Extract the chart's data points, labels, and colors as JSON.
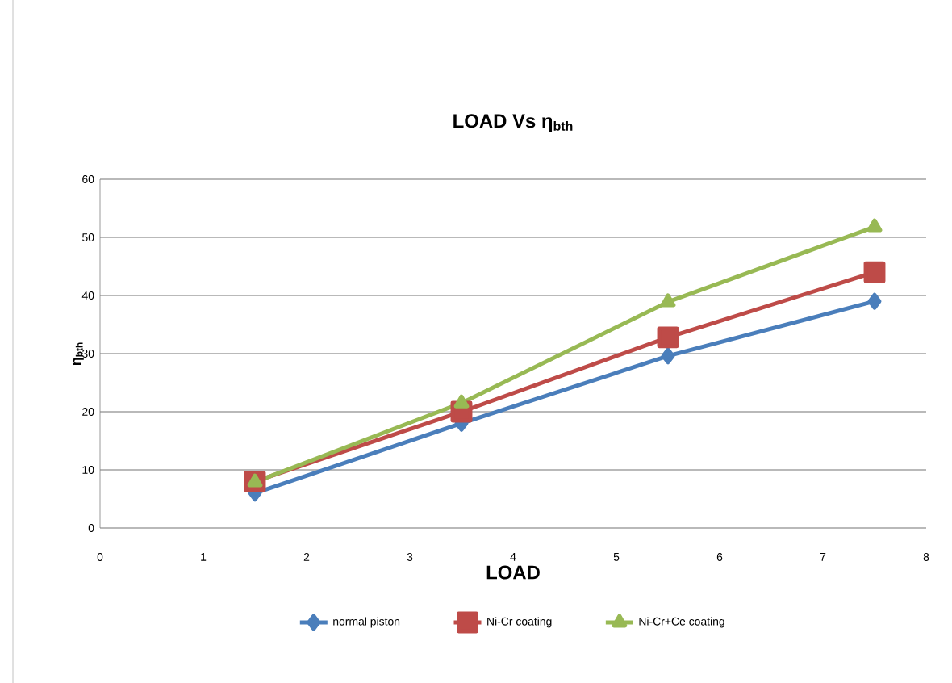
{
  "chart_data": {
    "type": "line",
    "title": "LOAD Vs η$_{bth}$",
    "xlabel": "LOAD",
    "ylabel": "η$_{bth}$",
    "x": [
      1.5,
      3.5,
      5.5,
      7.5
    ],
    "series": [
      {
        "name": "normal piston",
        "color": "#4a7ebb",
        "marker": "diamond",
        "values": [
          6,
          18,
          29.6,
          39
        ]
      },
      {
        "name": "Ni-Cr coating",
        "color": "#be4b48",
        "marker": "square",
        "values": [
          8,
          20,
          32.8,
          44
        ]
      },
      {
        "name": "Ni-Cr+Ce coating",
        "color": "#98b954",
        "marker": "triangle",
        "values": [
          7.9,
          21.5,
          38.9,
          51.8
        ]
      }
    ],
    "xlim": [
      0,
      8
    ],
    "xticks": [
      0,
      1,
      2,
      3,
      4,
      5,
      6,
      7,
      8
    ],
    "ylim": [
      0,
      60
    ],
    "yticks": [
      0,
      10,
      20,
      30,
      40,
      50,
      60
    ],
    "grid": "y",
    "legend": "bottom",
    "line_style": "solid"
  }
}
